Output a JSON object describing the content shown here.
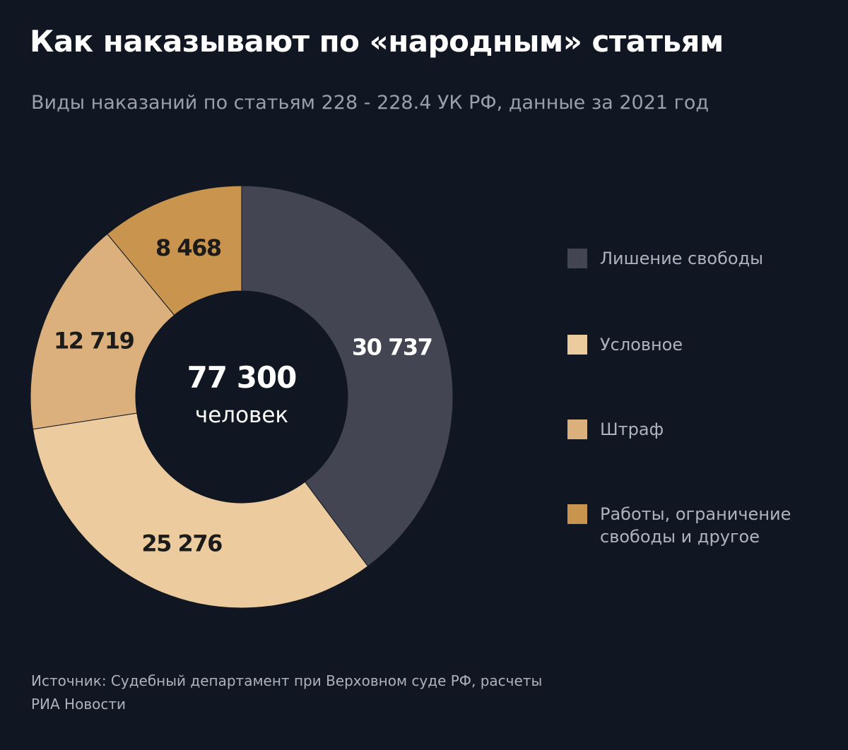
{
  "title": "Как наказывают по «народным» статьям",
  "subtitle": "Виды наказаний по статьям 228 - 228.4 УК РФ, данные за 2021 год",
  "center": {
    "total": "77 300",
    "unit": "человек"
  },
  "source": "Источник: Судебный департамент при Верховном суде РФ, расчеты РИА Новости",
  "chart_data": {
    "type": "pie",
    "donut": true,
    "title": "Как наказывают по «народным» статьям",
    "subtitle": "Виды наказаний по статьям 228 - 228.4 УК РФ, данные за 2021 год",
    "total": 77300,
    "legend_position": "right",
    "slices": [
      {
        "label": "Лишение свободы",
        "value": 30737,
        "value_label": "30 737",
        "color": "#434553",
        "label_color": "#ffffff"
      },
      {
        "label": "Условное",
        "value": 25276,
        "value_label": "25 276",
        "color": "#eccc9e",
        "label_color": "#1b1b1b"
      },
      {
        "label": "Штраф",
        "value": 12719,
        "value_label": "12 719",
        "color": "#dbb07c",
        "label_color": "#1b1b1b"
      },
      {
        "label": "Работы, ограничение свободы и другое",
        "value": 8468,
        "value_label": "8 468",
        "color": "#c9944d",
        "label_color": "#1b1b1b"
      }
    ]
  }
}
